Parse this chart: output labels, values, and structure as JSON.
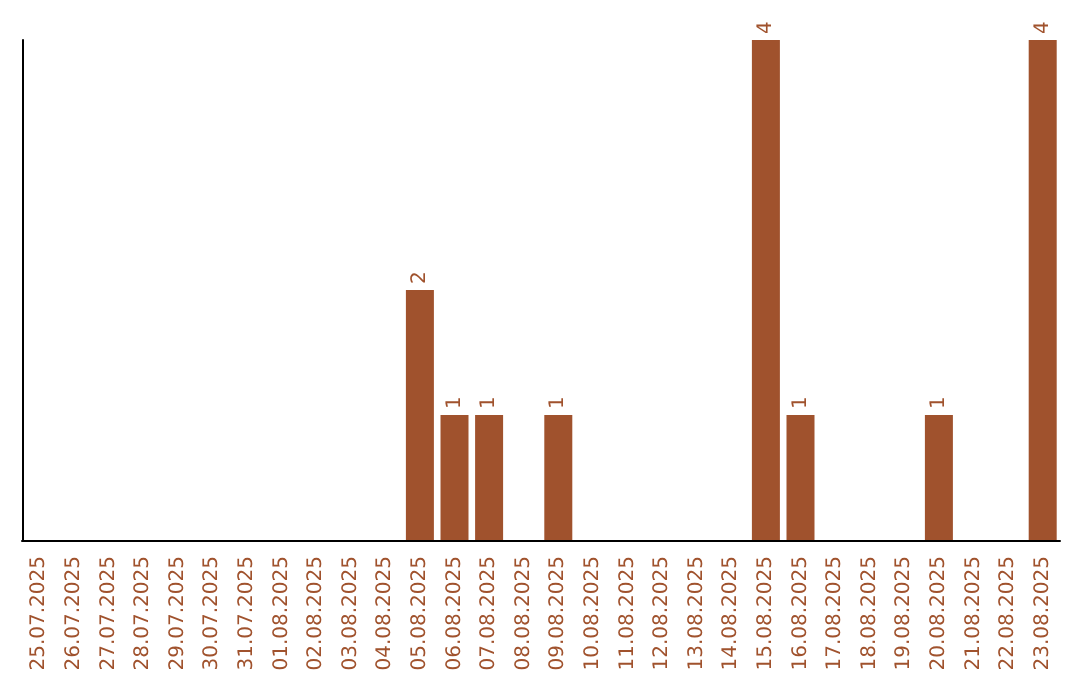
{
  "chart_data": {
    "type": "bar",
    "categories": [
      "25.07.2025",
      "26.07.2025",
      "27.07.2025",
      "28.07.2025",
      "29.07.2025",
      "30.07.2025",
      "31.07.2025",
      "01.08.2025",
      "02.08.2025",
      "03.08.2025",
      "04.08.2025",
      "05.08.2025",
      "06.08.2025",
      "07.08.2025",
      "08.08.2025",
      "09.08.2025",
      "10.08.2025",
      "11.08.2025",
      "12.08.2025",
      "13.08.2025",
      "14.08.2025",
      "15.08.2025",
      "16.08.2025",
      "17.08.2025",
      "18.08.2025",
      "19.08.2025",
      "20.08.2025",
      "21.08.2025",
      "22.08.2025",
      "23.08.2025"
    ],
    "values": [
      0,
      0,
      0,
      0,
      0,
      0,
      0,
      0,
      0,
      0,
      0,
      2,
      1,
      1,
      0,
      1,
      0,
      0,
      0,
      0,
      0,
      4,
      1,
      0,
      0,
      0,
      1,
      0,
      0,
      4
    ],
    "value_labels": [
      null,
      null,
      null,
      null,
      null,
      null,
      null,
      null,
      null,
      null,
      null,
      "2",
      "1",
      "1",
      null,
      "1",
      null,
      null,
      null,
      null,
      null,
      "4",
      "1",
      null,
      null,
      null,
      "1",
      null,
      null,
      "4"
    ],
    "color": "#a0522d",
    "grid": false
  }
}
